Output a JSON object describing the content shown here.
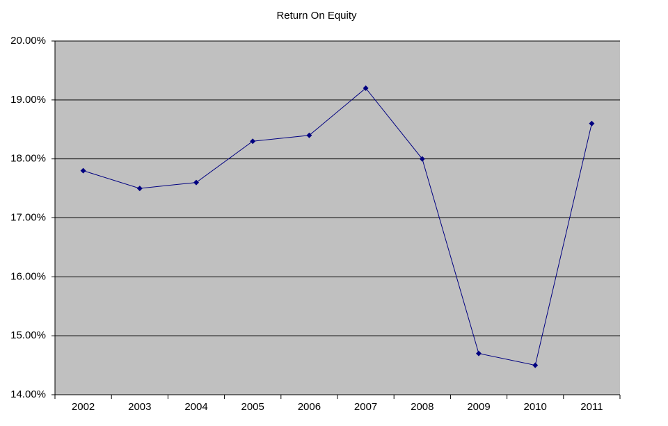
{
  "chart_data": {
    "type": "line",
    "title": "Return On Equity",
    "categories": [
      "2002",
      "2003",
      "2004",
      "2005",
      "2006",
      "2007",
      "2008",
      "2009",
      "2010",
      "2011"
    ],
    "values": [
      17.8,
      17.5,
      17.6,
      18.3,
      18.4,
      19.2,
      18.0,
      14.7,
      14.5,
      18.6
    ],
    "color": "#000080",
    "ylim": [
      14,
      20
    ],
    "yticks": [
      {
        "value": 14,
        "label": "14.00%"
      },
      {
        "value": 15,
        "label": "15.00%"
      },
      {
        "value": 16,
        "label": "16.00%"
      },
      {
        "value": 17,
        "label": "17.00%"
      },
      {
        "value": 18,
        "label": "18.00%"
      },
      {
        "value": 19,
        "label": "19.00%"
      },
      {
        "value": 20,
        "label": "20.00%"
      }
    ],
    "grid": true,
    "background": "#c0c0c0"
  }
}
